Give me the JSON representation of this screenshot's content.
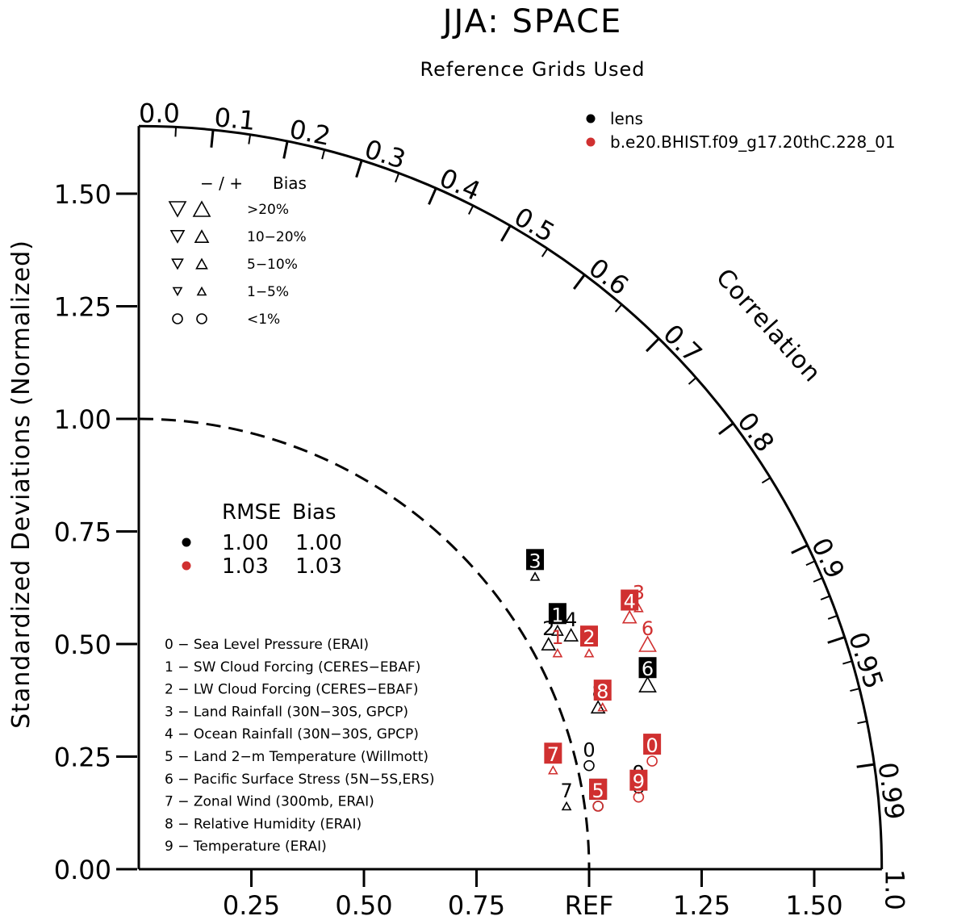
{
  "chart_data": {
    "type": "taylor",
    "title": "JJA: SPACE",
    "subtitle": "Reference Grids Used",
    "ylabel": "Standardized Deviations (Normalized)",
    "corr_label": "Correlation",
    "std_max": 1.65,
    "y_ticks": [
      "0.00",
      "0.25",
      "0.50",
      "0.75",
      "1.00",
      "1.25",
      "1.50"
    ],
    "y_tick_values": [
      0,
      0.25,
      0.5,
      0.75,
      1.0,
      1.25,
      1.5
    ],
    "x_ticks": [
      "0.25",
      "0.50",
      "0.75",
      "REF",
      "1.25",
      "1.50"
    ],
    "x_tick_values": [
      0.25,
      0.5,
      0.75,
      1.0,
      1.25,
      1.5
    ],
    "corr_ticks": [
      "0.0",
      "0.1",
      "0.2",
      "0.3",
      "0.4",
      "0.5",
      "0.6",
      "0.7",
      "0.8",
      "0.9",
      "0.95",
      "0.99",
      "1.0"
    ],
    "corr_tick_values": [
      0.0,
      0.1,
      0.2,
      0.3,
      0.4,
      0.5,
      0.6,
      0.7,
      0.8,
      0.9,
      0.95,
      0.99,
      1.0
    ],
    "ref_std": 1.0,
    "series": [
      {
        "name": "lens",
        "color": "#000000",
        "rmse": "1.00",
        "bias": "1.00",
        "points": [
          {
            "id": "0",
            "x": 1.0,
            "y": 0.23,
            "marker": "circle",
            "boxed": false
          },
          {
            "id": "1",
            "x": 0.93,
            "y": 0.53,
            "marker": "up-triangle-small",
            "boxed": true
          },
          {
            "id": "2",
            "x": 0.91,
            "y": 0.5,
            "marker": "up-triangle-medium",
            "boxed": false
          },
          {
            "id": "3",
            "x": 0.88,
            "y": 0.65,
            "marker": "up-triangle-tiny",
            "boxed": true
          },
          {
            "id": "4",
            "x": 0.96,
            "y": 0.52,
            "marker": "up-triangle-medium",
            "boxed": false
          },
          {
            "id": "5",
            "x": 1.02,
            "y": 0.14,
            "marker": "circle",
            "boxed": true
          },
          {
            "id": "6",
            "x": 1.13,
            "y": 0.41,
            "marker": "up-triangle-large",
            "boxed": true
          },
          {
            "id": "7",
            "x": 0.95,
            "y": 0.14,
            "marker": "up-triangle-tiny",
            "boxed": false
          },
          {
            "id": "8",
            "x": 1.02,
            "y": 0.36,
            "marker": "up-triangle-medium",
            "boxed": false
          },
          {
            "id": "9",
            "x": 1.11,
            "y": 0.18,
            "marker": "circle",
            "boxed": false
          }
        ]
      },
      {
        "name": "b.e20.BHIST.f09_g17.20thC.228_01",
        "color": "#d03030",
        "rmse": "1.03",
        "bias": "1.03",
        "points": [
          {
            "id": "0",
            "x": 1.14,
            "y": 0.24,
            "marker": "circle",
            "boxed": true
          },
          {
            "id": "1",
            "x": 0.93,
            "y": 0.48,
            "marker": "up-triangle-tiny",
            "boxed": false
          },
          {
            "id": "2",
            "x": 1.0,
            "y": 0.48,
            "marker": "up-triangle-tiny",
            "boxed": true
          },
          {
            "id": "3",
            "x": 1.11,
            "y": 0.58,
            "marker": "up-triangle-tiny",
            "boxed": false
          },
          {
            "id": "4",
            "x": 1.09,
            "y": 0.56,
            "marker": "up-triangle-medium",
            "boxed": true
          },
          {
            "id": "5",
            "x": 1.02,
            "y": 0.14,
            "marker": "circle",
            "boxed": true
          },
          {
            "id": "6",
            "x": 1.13,
            "y": 0.5,
            "marker": "up-triangle-large",
            "boxed": false
          },
          {
            "id": "7",
            "x": 0.92,
            "y": 0.22,
            "marker": "up-triangle-tiny",
            "boxed": true
          },
          {
            "id": "8",
            "x": 1.03,
            "y": 0.36,
            "marker": "up-triangle-tiny",
            "boxed": true
          },
          {
            "id": "9",
            "x": 1.11,
            "y": 0.16,
            "marker": "circle",
            "boxed": true
          }
        ]
      }
    ],
    "bias_legend": {
      "header_symbols": "− / +",
      "header_label": "Bias",
      "rows": [
        ">20%",
        "10−20%",
        "5−10%",
        "1−5%",
        "<1%"
      ]
    },
    "stats_legend": {
      "header_rmse": "RMSE",
      "header_bias": "Bias"
    },
    "variables": [
      "0 − Sea Level Pressure (ERAI)",
      "1 − SW Cloud Forcing (CERES−EBAF)",
      "2 − LW Cloud Forcing (CERES−EBAF)",
      "3 − Land Rainfall (30N−30S, GPCP)",
      "4 − Ocean Rainfall (30N−30S, GPCP)",
      "5 − Land 2−m Temperature (Willmott)",
      "6 − Pacific Surface Stress (5N−5S,ERS)",
      "7 − Zonal Wind (300mb, ERAI)",
      "8 − Relative Humidity (ERAI)",
      "9 − Temperature (ERAI)"
    ]
  }
}
